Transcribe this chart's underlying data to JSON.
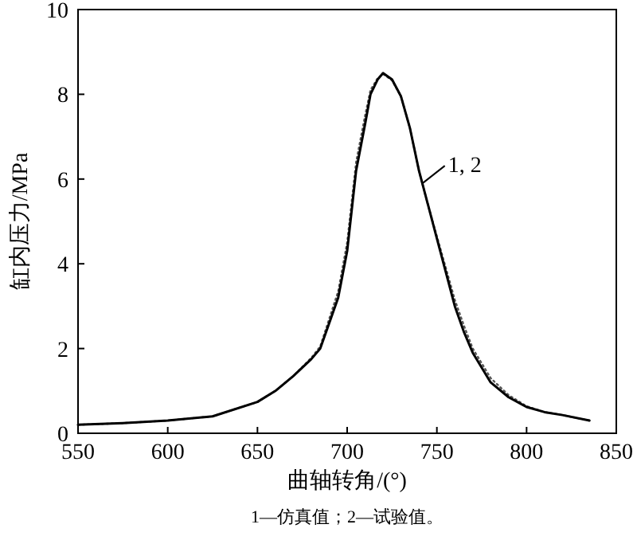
{
  "chart_data": {
    "type": "line",
    "xlabel": "曲轴转角/(°)",
    "ylabel": "缸内压力/MPa",
    "xlim": [
      550,
      850
    ],
    "ylim": [
      0,
      10
    ],
    "xticks": [
      550,
      600,
      650,
      700,
      750,
      800,
      850
    ],
    "yticks": [
      0,
      2,
      4,
      6,
      8,
      10
    ],
    "annotations": [
      {
        "text": "1, 2",
        "x": 742,
        "y": 5.9
      },
      "1—仿真值；2—试验值。"
    ],
    "series": [
      {
        "color": "#000000",
        "line_style": "solid",
        "x": [
          550,
          575,
          600,
          625,
          650,
          660,
          670,
          680,
          685,
          690,
          695,
          700,
          705,
          710,
          713,
          717,
          720,
          725,
          730,
          735,
          740,
          745,
          750,
          755,
          760,
          765,
          770,
          780,
          790,
          800,
          810,
          820,
          835
        ],
        "values": [
          0.2,
          0.24,
          0.3,
          0.4,
          0.74,
          1.0,
          1.35,
          1.75,
          2.0,
          2.6,
          3.2,
          4.3,
          6.2,
          7.3,
          8.0,
          8.35,
          8.5,
          8.35,
          7.95,
          7.2,
          6.2,
          5.4,
          4.6,
          3.8,
          3.0,
          2.4,
          1.9,
          1.2,
          0.85,
          0.62,
          0.5,
          0.43,
          0.3
        ]
      },
      {
        "color": "#555555",
        "line_style": "dotted",
        "x": [
          550,
          575,
          600,
          625,
          650,
          660,
          670,
          680,
          685,
          690,
          695,
          700,
          705,
          710,
          713,
          717,
          720,
          725,
          730,
          735,
          740,
          745,
          750,
          755,
          760,
          765,
          770,
          780,
          790,
          800,
          810,
          820,
          835
        ],
        "values": [
          0.2,
          0.24,
          0.3,
          0.4,
          0.74,
          1.0,
          1.35,
          1.78,
          2.05,
          2.7,
          3.35,
          4.5,
          6.4,
          7.5,
          8.1,
          8.38,
          8.48,
          8.33,
          7.95,
          7.2,
          6.2,
          5.4,
          4.65,
          3.9,
          3.15,
          2.55,
          2.0,
          1.3,
          0.9,
          0.64,
          0.5,
          0.43,
          0.3
        ]
      }
    ]
  }
}
